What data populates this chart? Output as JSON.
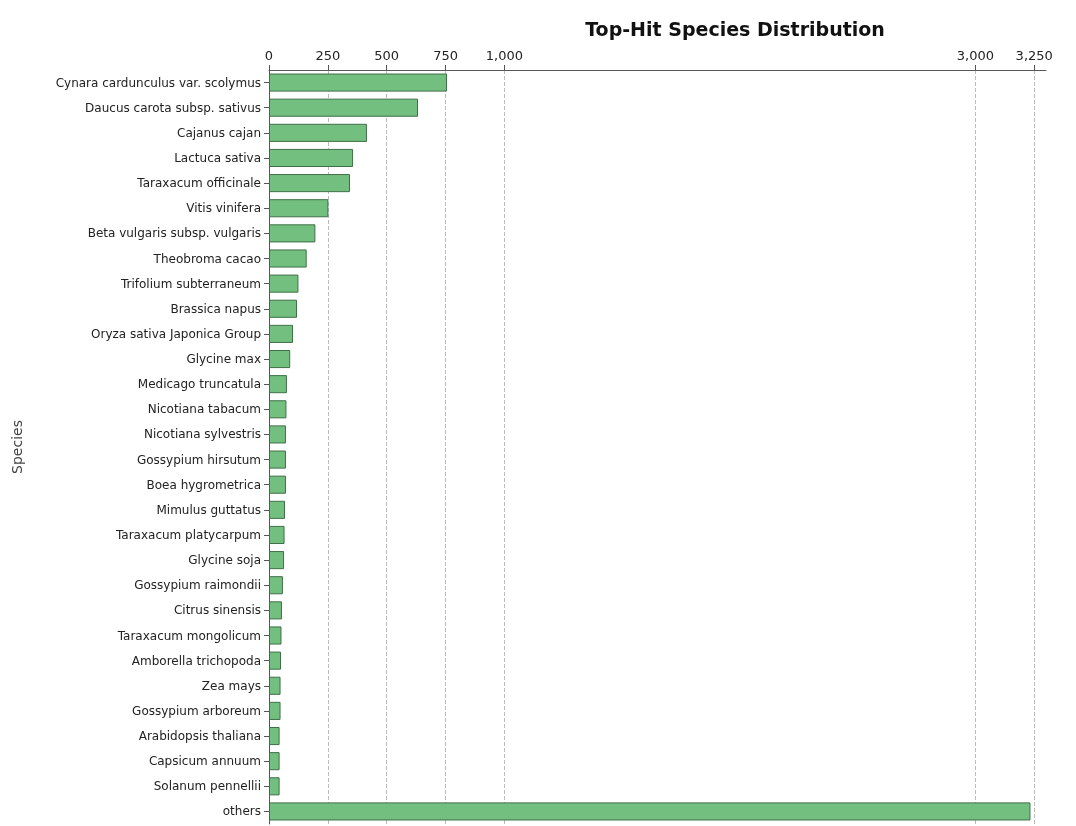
{
  "chart_data": {
    "type": "bar",
    "orientation": "horizontal",
    "title": "Top-Hit Species Distribution",
    "ylabel": "Species",
    "categories": [
      "Cynara cardunculus var. scolymus",
      "Daucus carota subsp. sativus",
      "Cajanus cajan",
      "Lactuca sativa",
      "Taraxacum officinale",
      "Vitis vinifera",
      "Beta vulgaris subsp. vulgaris",
      "Theobroma cacao",
      "Trifolium subterraneum",
      "Brassica napus",
      "Oryza sativa Japonica Group",
      "Glycine max",
      "Medicago truncatula",
      "Nicotiana tabacum",
      "Nicotiana sylvestris",
      "Gossypium hirsutum",
      "Boea hygrometrica",
      "Mimulus guttatus",
      "Taraxacum platycarpum",
      "Glycine soja",
      "Gossypium raimondii",
      "Citrus sinensis",
      "Taraxacum mongolicum",
      "Amborella trichopoda",
      "Zea mays",
      "Gossypium arboreum",
      "Arabidopsis thaliana",
      "Capsicum annuum",
      "Solanum pennellii",
      "others"
    ],
    "values": [
      756,
      633,
      416,
      357,
      344,
      252,
      197,
      160,
      125,
      119,
      102,
      90,
      76,
      74,
      72,
      72,
      72,
      68,
      66,
      64,
      59,
      55,
      53,
      51,
      49,
      49,
      45,
      45,
      45,
      3234
    ],
    "color": "#73bf7f",
    "xlim": [
      0,
      3300
    ],
    "xticks": [
      0,
      250,
      500,
      750,
      {
        "value": 1000,
        "label": "1,000"
      },
      {
        "value": 3000,
        "label": "3,000"
      },
      {
        "value": 3250,
        "label": "3,250"
      }
    ],
    "grid": "x"
  }
}
